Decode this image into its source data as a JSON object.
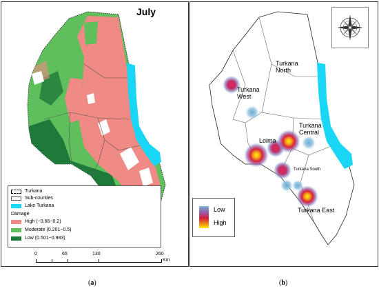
{
  "panel_a": {
    "title": "July",
    "caption_open": "(",
    "caption_letter": "a",
    "caption_close": ")",
    "legend": {
      "turkana": "Turkana",
      "subcounties": "Sub-counties",
      "lake": "Lake Turkana",
      "damage_heading": "Damage",
      "high": "High (−0.66−0.2)",
      "moderate": "Moderate (0.201−0.5)",
      "low": "Low (0.501−0.983)"
    },
    "colors": {
      "high": "#f08a84",
      "moderate": "#5fbf5c",
      "low": "#1e7a3a",
      "lake": "#19d6f5"
    },
    "scalebar": {
      "ticks": [
        "0",
        "65",
        "130",
        "260"
      ],
      "unit": "Km"
    }
  },
  "panel_b": {
    "caption_open": "(",
    "caption_letter": "b",
    "caption_close": ")",
    "legend": {
      "low": "Low",
      "high": "High"
    },
    "regions": {
      "north_1": "Turkana",
      "north_2": "North",
      "west_1": "Turkana",
      "west_2": "West",
      "loima": "Loima",
      "central_1": "Turkana",
      "central_2": "Central",
      "south": "Turkana South",
      "east": "Turkana East"
    },
    "compass_icon": "compass-rose-icon",
    "colors": {
      "lake": "#19d6f5"
    }
  }
}
